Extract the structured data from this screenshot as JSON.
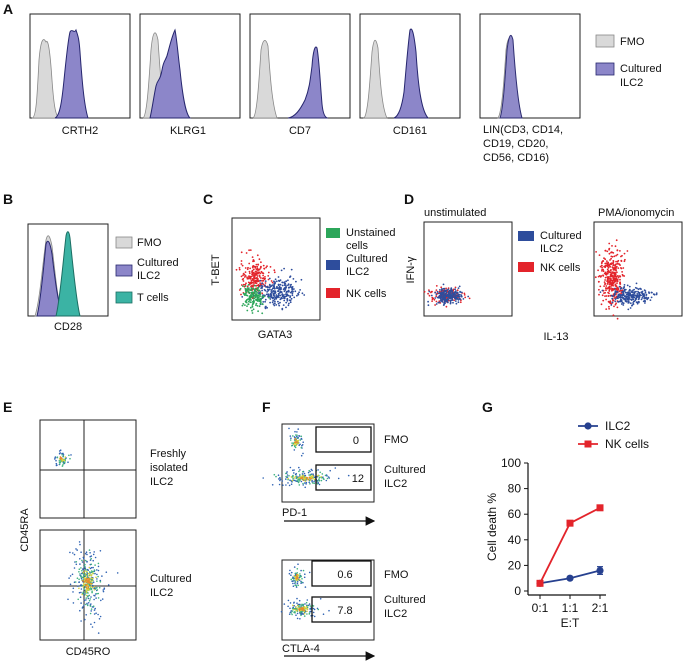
{
  "panels": {
    "A": {
      "letter": "A",
      "markers": [
        "CRTH2",
        "KLRG1",
        "CD7",
        "CD161",
        "LIN(CD3, CD14,",
        "CD19, CD20,",
        "CD56, CD16)"
      ],
      "legend": [
        "FMO",
        "Cultured",
        "ILC2"
      ]
    },
    "B": {
      "letter": "B",
      "xlabel": "CD28",
      "legend": [
        "FMO",
        "Cultured",
        "ILC2",
        "T cells"
      ]
    },
    "C": {
      "letter": "C",
      "xlabel": "GATA3",
      "ylabel": "T-BET",
      "legend": [
        "Unstained",
        "cells",
        "Cultured",
        "ILC2",
        "NK cells"
      ]
    },
    "D": {
      "letter": "D",
      "conditions": [
        "unstimulated",
        "PMA/ionomycin"
      ],
      "xlabel": "IL-13",
      "ylabel": "IFN-γ",
      "legend": [
        "Cultured",
        "ILC2",
        "NK cells"
      ]
    },
    "E": {
      "letter": "E",
      "xlabel": "CD45RO",
      "ylabel": "CD45RA",
      "samples": [
        "Freshly",
        "isolated",
        "ILC2",
        "Cultured",
        "ILC2"
      ]
    },
    "F": {
      "letter": "F",
      "markers": [
        "PD-1",
        "CTLA-4"
      ],
      "gate_values": [
        "0",
        "12",
        "0.6",
        "7.8"
      ],
      "samples": [
        "FMO",
        "Cultured",
        "ILC2"
      ]
    },
    "G": {
      "letter": "G",
      "legend": [
        "ILC2",
        "NK cells"
      ]
    }
  },
  "colors": {
    "fmo": "#d9d9d9",
    "ilc2": "#8c86c9",
    "tcells": "#3bb3a4",
    "unstained": "#2ca65a",
    "cultured": "#2e4d9c",
    "nk": "#e3242b",
    "line_ilc2": "#26408f",
    "line_nk": "#e3242b"
  },
  "chart_data": [
    {
      "panel": "G",
      "type": "line",
      "title": "",
      "xlabel": "E:T",
      "ylabel": "Cell death %",
      "categories": [
        "0:1",
        "1:1",
        "2:1"
      ],
      "ylim": [
        0,
        100
      ],
      "yticks": [
        0,
        20,
        40,
        60,
        80,
        100
      ],
      "series": [
        {
          "name": "ILC2",
          "values": [
            6,
            10,
            16
          ],
          "errors": [
            0,
            0,
            3
          ],
          "color": "#26408f",
          "marker": "circle"
        },
        {
          "name": "NK cells",
          "values": [
            6,
            53,
            65
          ],
          "errors": [
            0,
            1,
            1
          ],
          "color": "#e3242b",
          "marker": "square"
        }
      ],
      "legend_position": "top-right"
    }
  ]
}
